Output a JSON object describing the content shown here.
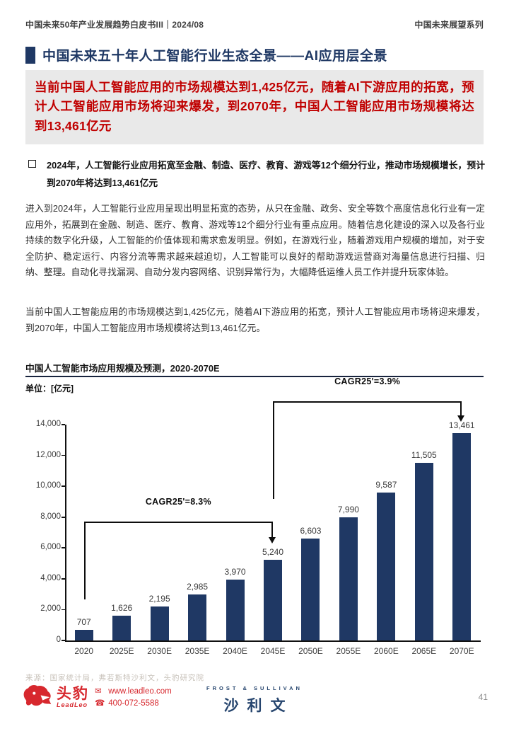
{
  "colors": {
    "navy": "#1F3864",
    "highlight_text_red": "#C00000",
    "highlight_box_bg": "#E9E9E9",
    "bar_navy": "#1F3864",
    "logo_red": "#D7282E",
    "source_gray": "#C8C2BA"
  },
  "header": {
    "left": "中国未来50年产业发展趋势白皮书III｜2024/08",
    "right": "中国未来展望系列"
  },
  "title": "中国未来五十年人工智能行业生态全景——AI应用层全景",
  "highlight": "当前中国人工智能应用的市场规模达到1,425亿元，随着AI下游应用的拓宽，预计人工智能应用市场将迎来爆发，到2070年，中国人工智能应用市场规模将达到13,461亿元",
  "bullet": "2024年，人工智能行业应用拓宽至金融、制造、医疗、教育、游戏等12个细分行业，推动市场规模增长，预计到2070年将达到13,461亿元",
  "para1": "进入到2024年，人工智能行业应用呈现出明显拓宽的态势，从只在金融、政务、安全等数个高度信息化行业有一定应用外，拓展到在金融、制造、医疗、教育、游戏等12个细分行业有重点应用。随着信息化建设的深入以及各行业持续的数字化升级，人工智能的价值体现和需求愈发明显。例如，在游戏行业，随着游戏用户规模的增加，对于安全防护、稳定运行、内容分流等需求越来越迫切，人工智能可以良好的帮助游戏运营商对海量信息进行扫描、归纳、整理。自动化寻找漏洞、自动分发内容网络、识别异常行为，大幅降低运维人员工作并提升玩家体验。",
  "para2": "当前中国人工智能应用的市场规模达到1,425亿元，随着AI下游应用的拓宽，预计人工智能应用市场将迎来爆发，到2070年，中国人工智能应用市场规模将达到13,461亿元。",
  "chart_data": {
    "type": "bar",
    "title": "中国人工智能市场应用规模及预测，2020-2070E",
    "unit_label": "单位：[亿元]",
    "categories": [
      "2020",
      "2025E",
      "2030E",
      "2035E",
      "2040E",
      "2045E",
      "2050E",
      "2055E",
      "2060E",
      "2065E",
      "2070E"
    ],
    "values": [
      707,
      1626,
      2195,
      2985,
      3970,
      5240,
      6603,
      7990,
      9587,
      11505,
      13461
    ],
    "value_labels": [
      "707",
      "1,626",
      "2,195",
      "2,985",
      "3,970",
      "5,240",
      "6,603",
      "7,990",
      "9,587",
      "11,505",
      "13,461"
    ],
    "ylabel": "",
    "xlabel": "",
    "ylim": [
      0,
      14000
    ],
    "ytick_step": 2000,
    "grid": false,
    "legend": "none",
    "bar_color": "#1F3864",
    "annotations": [
      {
        "label": "CAGR25'=8.3%",
        "from_index": 0,
        "to_index": 5
      },
      {
        "label": "CAGR25'=3.9%",
        "from_index": 5,
        "to_index": 10
      }
    ]
  },
  "footer": {
    "source": "来源：国家统计局，弗若斯特沙利文，头豹研究院",
    "leadleo": {
      "name": "头豹",
      "subname": "LeadLeo",
      "website": "www.leadleo.com",
      "phone": "400-072-5588"
    },
    "sullivan": {
      "top": "FROST & SULLIVAN",
      "name": "沙利文"
    },
    "page_number": "41"
  }
}
